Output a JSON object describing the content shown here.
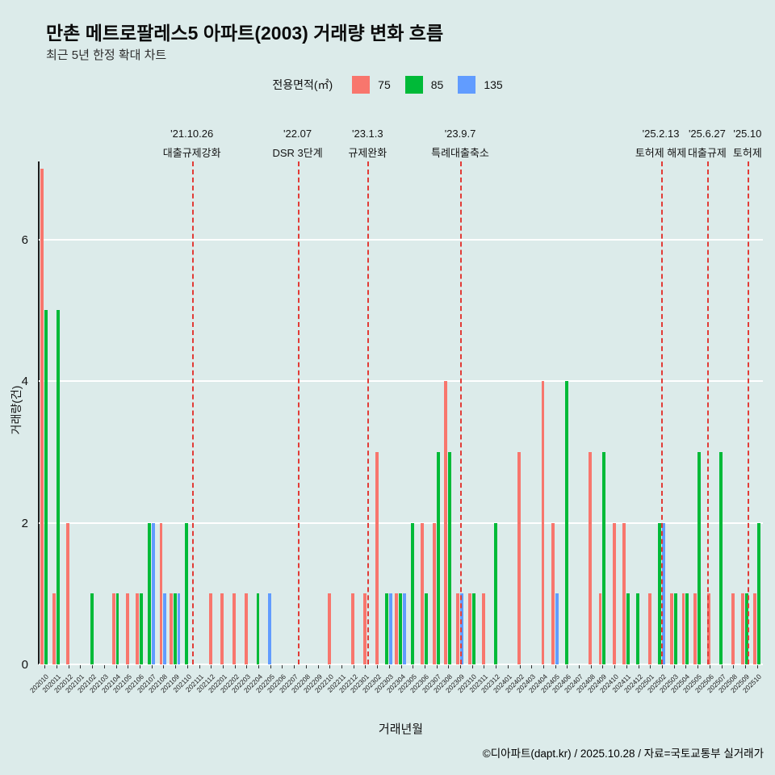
{
  "footer": {
    "credit": "©디아파트(dapt.kr) / 2025.10.28 / 자료=국토교통부 실거래가"
  },
  "chart_data": {
    "type": "bar",
    "title": "만촌 메트로팔레스5 아파트(2003) 거래량 변화 흐름",
    "subtitle": "최근 5년 한정 확대 차트",
    "legend_title": "전용면적(㎡)",
    "legend_position": "top-center",
    "xlabel": "거래년월",
    "ylabel": "거래량(건)",
    "ylim": [
      0,
      7.1
    ],
    "yticks": [
      0,
      2,
      4,
      6
    ],
    "grid": "horizontal-white-major",
    "background": "#dcebea",
    "event_line_color": "#e23b36",
    "categories": [
      "202010",
      "202011",
      "202012",
      "202101",
      "202102",
      "202103",
      "202104",
      "202105",
      "202106",
      "202107",
      "202108",
      "202109",
      "202110",
      "202111",
      "202112",
      "202201",
      "202202",
      "202203",
      "202204",
      "202205",
      "202206",
      "202207",
      "202208",
      "202209",
      "202210",
      "202211",
      "202212",
      "202301",
      "202302",
      "202303",
      "202304",
      "202305",
      "202306",
      "202307",
      "202308",
      "202309",
      "202310",
      "202311",
      "202312",
      "202401",
      "202402",
      "202403",
      "202404",
      "202405",
      "202406",
      "202407",
      "202408",
      "202409",
      "202410",
      "202411",
      "202412",
      "202501",
      "202502",
      "202503",
      "202504",
      "202505",
      "202506",
      "202507",
      "202508",
      "202509",
      "202510"
    ],
    "series": [
      {
        "name": "75",
        "color": "#f8766d",
        "values": [
          7,
          1,
          2,
          0,
          0,
          0,
          1,
          1,
          1,
          0,
          2,
          1,
          0,
          0,
          1,
          1,
          1,
          1,
          0,
          0,
          0,
          0,
          0,
          0,
          1,
          0,
          1,
          1,
          3,
          0,
          1,
          0,
          2,
          2,
          4,
          1,
          1,
          1,
          0,
          0,
          3,
          0,
          4,
          2,
          0,
          0,
          3,
          1,
          2,
          2,
          0,
          1,
          0,
          1,
          1,
          1,
          1,
          0,
          1,
          1,
          1
        ]
      },
      {
        "name": "85",
        "color": "#00ba38",
        "values": [
          5,
          5,
          0,
          0,
          1,
          0,
          1,
          0,
          1,
          2,
          0,
          1,
          2,
          0,
          0,
          0,
          0,
          0,
          1,
          0,
          0,
          0,
          0,
          0,
          0,
          0,
          0,
          0,
          0,
          1,
          1,
          2,
          1,
          3,
          3,
          0,
          1,
          0,
          2,
          0,
          0,
          0,
          0,
          0,
          4,
          0,
          0,
          3,
          0,
          1,
          1,
          0,
          2,
          1,
          1,
          3,
          0,
          3,
          0,
          1,
          2
        ]
      },
      {
        "name": "135",
        "color": "#619cff",
        "values": [
          0,
          0,
          0,
          0,
          0,
          0,
          0,
          0,
          0,
          2,
          1,
          1,
          0,
          0,
          0,
          0,
          0,
          0,
          0,
          1,
          0,
          0,
          0,
          0,
          0,
          0,
          0,
          0,
          0,
          1,
          1,
          0,
          0,
          0,
          0,
          1,
          0,
          0,
          0,
          0,
          0,
          0,
          0,
          1,
          0,
          0,
          0,
          0,
          0,
          0,
          0,
          0,
          2,
          0,
          0,
          0,
          0,
          0,
          0,
          0,
          0
        ]
      }
    ],
    "events": [
      {
        "date": "'21.10.26",
        "label": "대출규제강화",
        "index": 12.9
      },
      {
        "date": "'22.07",
        "label": "DSR 3단계",
        "index": 21.8
      },
      {
        "date": "'23.1.3",
        "label": "규제완화",
        "index": 27.7
      },
      {
        "date": "'23.9.7",
        "label": "특례대출축소",
        "index": 35.5
      },
      {
        "date": "'25.2.13",
        "label": "토허제 해제",
        "index": 52.4
      },
      {
        "date": "'25.6.27",
        "label": "대출규제",
        "index": 56.3
      },
      {
        "date": "'25.10",
        "label": "토허제",
        "index": 59.7
      }
    ]
  }
}
